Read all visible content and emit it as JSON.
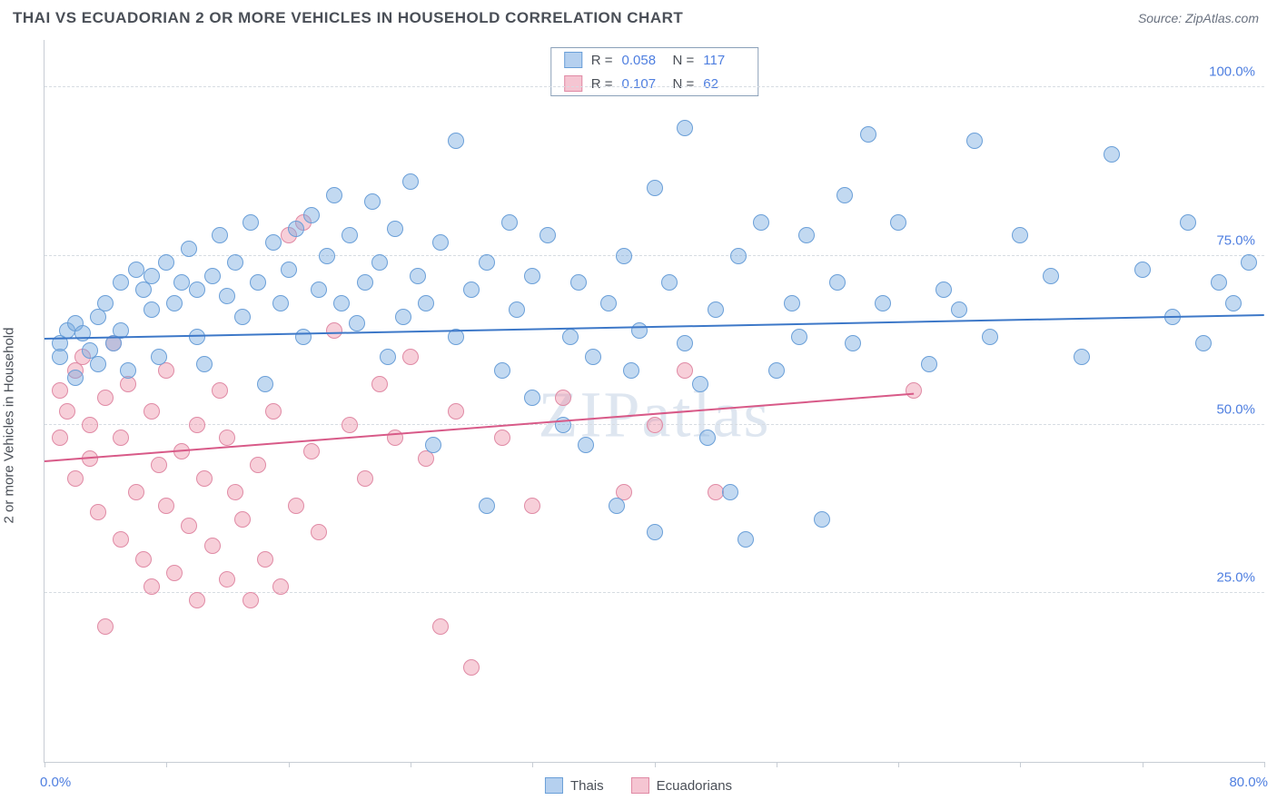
{
  "header": {
    "title": "THAI VS ECUADORIAN 2 OR MORE VEHICLES IN HOUSEHOLD CORRELATION CHART",
    "source": "Source: ZipAtlas.com"
  },
  "ylabel": "2 or more Vehicles in Household",
  "watermark": "ZIPatlas",
  "axes": {
    "xlim": [
      0,
      80
    ],
    "ylim": [
      0,
      107
    ],
    "ytick_values": [
      25,
      50,
      75,
      100
    ],
    "ytick_labels": [
      "25.0%",
      "50.0%",
      "75.0%",
      "100.0%"
    ],
    "xtick_values": [
      0,
      8,
      16,
      24,
      32,
      40,
      48,
      56,
      64,
      72,
      80
    ],
    "xmin_label": "0.0%",
    "xmax_label": "80.0%",
    "grid_color": "#d7dce2",
    "axis_color": "#c7cdd4",
    "tick_label_color": "#4f7fe0"
  },
  "series": {
    "thai": {
      "label": "Thais",
      "fill": "rgba(120,170,225,0.45)",
      "stroke": "#6a9fd8",
      "marker_radius": 9,
      "trend": {
        "x1": 0,
        "y1": 62.5,
        "x2": 80,
        "y2": 66.0,
        "color": "#3d78c8",
        "width": 2.4
      },
      "R": "0.058",
      "N": "117",
      "points": [
        [
          1,
          62
        ],
        [
          1,
          60
        ],
        [
          1.5,
          64
        ],
        [
          2,
          57
        ],
        [
          2,
          65
        ],
        [
          2.5,
          63.5
        ],
        [
          3,
          61
        ],
        [
          3.5,
          66
        ],
        [
          3.5,
          59
        ],
        [
          4,
          68
        ],
        [
          4.5,
          62
        ],
        [
          5,
          71
        ],
        [
          5,
          64
        ],
        [
          5.5,
          58
        ],
        [
          6,
          73
        ],
        [
          6.5,
          70
        ],
        [
          7,
          72
        ],
        [
          7,
          67
        ],
        [
          7.5,
          60
        ],
        [
          8,
          74
        ],
        [
          8.5,
          68
        ],
        [
          9,
          71
        ],
        [
          9.5,
          76
        ],
        [
          10,
          63
        ],
        [
          10,
          70
        ],
        [
          10.5,
          59
        ],
        [
          11,
          72
        ],
        [
          11.5,
          78
        ],
        [
          12,
          69
        ],
        [
          12.5,
          74
        ],
        [
          13,
          66
        ],
        [
          13.5,
          80
        ],
        [
          14,
          71
        ],
        [
          14.5,
          56
        ],
        [
          15,
          77
        ],
        [
          15.5,
          68
        ],
        [
          16,
          73
        ],
        [
          16.5,
          79
        ],
        [
          17,
          63
        ],
        [
          17.5,
          81
        ],
        [
          18,
          70
        ],
        [
          18.5,
          75
        ],
        [
          19,
          84
        ],
        [
          19.5,
          68
        ],
        [
          20,
          78
        ],
        [
          20.5,
          65
        ],
        [
          21,
          71
        ],
        [
          21.5,
          83
        ],
        [
          22,
          74
        ],
        [
          22.5,
          60
        ],
        [
          23,
          79
        ],
        [
          23.5,
          66
        ],
        [
          24,
          86
        ],
        [
          24.5,
          72
        ],
        [
          25,
          68
        ],
        [
          25.5,
          47
        ],
        [
          26,
          77
        ],
        [
          27,
          63
        ],
        [
          27,
          92
        ],
        [
          28,
          70
        ],
        [
          29,
          74
        ],
        [
          29,
          38
        ],
        [
          30,
          58
        ],
        [
          30.5,
          80
        ],
        [
          31,
          67
        ],
        [
          32,
          72
        ],
        [
          32,
          54
        ],
        [
          33,
          78
        ],
        [
          34,
          50
        ],
        [
          34.5,
          63
        ],
        [
          35,
          71
        ],
        [
          35.5,
          47
        ],
        [
          36,
          60
        ],
        [
          37,
          68
        ],
        [
          37.5,
          38
        ],
        [
          38,
          75
        ],
        [
          38.5,
          58
        ],
        [
          39,
          64
        ],
        [
          40,
          85
        ],
        [
          40,
          34
        ],
        [
          41,
          71
        ],
        [
          42,
          62
        ],
        [
          42,
          94
        ],
        [
          43,
          56
        ],
        [
          43.5,
          48
        ],
        [
          44,
          67
        ],
        [
          45,
          40
        ],
        [
          45.5,
          75
        ],
        [
          46,
          33
        ],
        [
          47,
          80
        ],
        [
          48,
          58
        ],
        [
          49,
          68
        ],
        [
          49.5,
          63
        ],
        [
          50,
          78
        ],
        [
          51,
          36
        ],
        [
          52,
          71
        ],
        [
          52.5,
          84
        ],
        [
          53,
          62
        ],
        [
          54,
          93
        ],
        [
          55,
          68
        ],
        [
          56,
          80
        ],
        [
          58,
          59
        ],
        [
          59,
          70
        ],
        [
          60,
          67
        ],
        [
          61,
          92
        ],
        [
          62,
          63
        ],
        [
          64,
          78
        ],
        [
          66,
          72
        ],
        [
          68,
          60
        ],
        [
          70,
          90
        ],
        [
          72,
          73
        ],
        [
          74,
          66
        ],
        [
          75,
          80
        ],
        [
          76,
          62
        ],
        [
          77,
          71
        ],
        [
          78,
          68
        ],
        [
          79,
          74
        ]
      ]
    },
    "ecuadorian": {
      "label": "Ecuadorians",
      "fill": "rgba(235,140,165,0.42)",
      "stroke": "#e08aa5",
      "marker_radius": 9,
      "trend_solid": {
        "x1": 0,
        "y1": 44.5,
        "x2": 57,
        "y2": 54.5,
        "color": "#d85a88",
        "width": 1.8
      },
      "trend_dash": {
        "x1": 57,
        "y1": 54.5,
        "x2": 80,
        "y2": 58.5,
        "color": "#d85a88",
        "width": 1
      },
      "R": "0.107",
      "N": "62",
      "points": [
        [
          1,
          55
        ],
        [
          1,
          48
        ],
        [
          1.5,
          52
        ],
        [
          2,
          58
        ],
        [
          2,
          42
        ],
        [
          2.5,
          60
        ],
        [
          3,
          50
        ],
        [
          3,
          45
        ],
        [
          3.5,
          37
        ],
        [
          4,
          54
        ],
        [
          4,
          20
        ],
        [
          4.5,
          62
        ],
        [
          5,
          33
        ],
        [
          5,
          48
        ],
        [
          5.5,
          56
        ],
        [
          6,
          40
        ],
        [
          6.5,
          30
        ],
        [
          7,
          52
        ],
        [
          7,
          26
        ],
        [
          7.5,
          44
        ],
        [
          8,
          38
        ],
        [
          8,
          58
        ],
        [
          8.5,
          28
        ],
        [
          9,
          46
        ],
        [
          9.5,
          35
        ],
        [
          10,
          24
        ],
        [
          10,
          50
        ],
        [
          10.5,
          42
        ],
        [
          11,
          32
        ],
        [
          11.5,
          55
        ],
        [
          12,
          27
        ],
        [
          12,
          48
        ],
        [
          12.5,
          40
        ],
        [
          13,
          36
        ],
        [
          13.5,
          24
        ],
        [
          14,
          44
        ],
        [
          14.5,
          30
        ],
        [
          15,
          52
        ],
        [
          15.5,
          26
        ],
        [
          16,
          78
        ],
        [
          16.5,
          38
        ],
        [
          17,
          80
        ],
        [
          17.5,
          46
        ],
        [
          18,
          34
        ],
        [
          19,
          64
        ],
        [
          20,
          50
        ],
        [
          21,
          42
        ],
        [
          22,
          56
        ],
        [
          23,
          48
        ],
        [
          24,
          60
        ],
        [
          25,
          45
        ],
        [
          26,
          20
        ],
        [
          27,
          52
        ],
        [
          28,
          14
        ],
        [
          30,
          48
        ],
        [
          32,
          38
        ],
        [
          34,
          54
        ],
        [
          38,
          40
        ],
        [
          40,
          50
        ],
        [
          42,
          58
        ],
        [
          44,
          40
        ],
        [
          57,
          55
        ]
      ]
    }
  },
  "legend_top": {
    "rows": [
      {
        "swatch_fill": "rgba(120,170,225,0.55)",
        "swatch_border": "#6a9fd8",
        "r_label": "R =",
        "r_val": "0.058",
        "n_label": "N =",
        "n_val": "117"
      },
      {
        "swatch_fill": "rgba(235,140,165,0.5)",
        "swatch_border": "#e08aa5",
        "r_label": "R =",
        "r_val": "0.107",
        "n_label": "N =",
        "n_val": "62"
      }
    ]
  },
  "legend_bottom": [
    {
      "label": "Thais",
      "fill": "rgba(120,170,225,0.55)",
      "border": "#6a9fd8"
    },
    {
      "label": "Ecuadorians",
      "fill": "rgba(235,140,165,0.5)",
      "border": "#e08aa5"
    }
  ]
}
